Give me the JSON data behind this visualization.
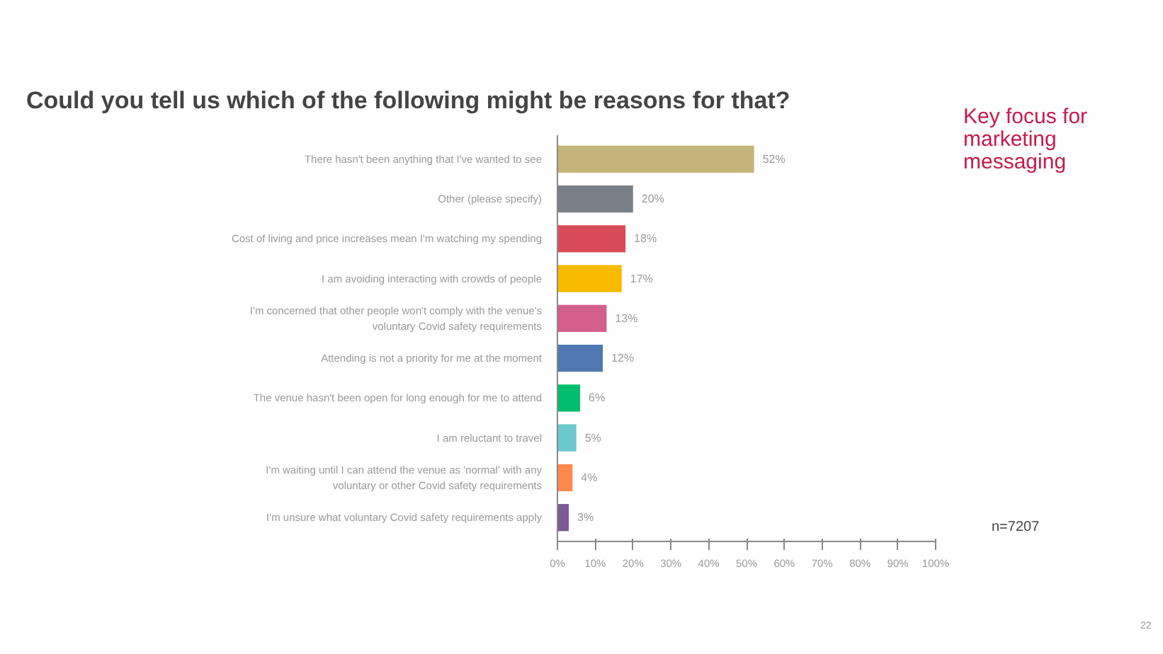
{
  "chart_data": {
    "type": "bar",
    "orientation": "horizontal",
    "title": "Could you tell us which of the following might be reasons for that?",
    "categories": [
      "There hasn't been anything that I've wanted to see",
      "Other (please specify)",
      "Cost of living and price increases mean I'm watching my spending",
      "I am avoiding interacting with crowds of people",
      "I'm concerned that other people won't comply with the venue's\nvoluntary Covid safety requirements",
      "Attending is not a priority for me at the moment",
      "The venue hasn't been open for long enough for me to attend",
      "I am reluctant to travel",
      "I'm waiting until I can attend the venue as 'normal' with any\nvoluntary or other Covid safety requirements",
      "I'm unsure what voluntary Covid safety requirements apply"
    ],
    "values": [
      52,
      20,
      18,
      17,
      13,
      12,
      6,
      5,
      4,
      3
    ],
    "value_labels": [
      "52%",
      "20%",
      "18%",
      "17%",
      "13%",
      "12%",
      "6%",
      "5%",
      "4%",
      "3%"
    ],
    "colors": [
      "#c5b47a",
      "#7a8088",
      "#da4b5a",
      "#f8bb00",
      "#d45e8e",
      "#4f78b2",
      "#00be6e",
      "#6cc8cc",
      "#ff8a4c",
      "#7b5a93"
    ],
    "xlim": [
      0,
      100
    ],
    "xticks": [
      {
        "value": 0,
        "label": "0%"
      },
      {
        "value": 10,
        "label": "10%"
      },
      {
        "value": 20,
        "label": "20%"
      },
      {
        "value": 30,
        "label": "30%"
      },
      {
        "value": 40,
        "label": "40%"
      },
      {
        "value": 50,
        "label": "50%"
      },
      {
        "value": 60,
        "label": "60%"
      },
      {
        "value": 70,
        "label": "70%"
      },
      {
        "value": 80,
        "label": "80%"
      },
      {
        "value": 90,
        "label": "90%"
      },
      {
        "value": 100,
        "label": "100%"
      }
    ],
    "annotations": [
      "Key focus for\nmarketing\nmessaging",
      "n=7207",
      "22"
    ],
    "grid": false,
    "legend": false
  }
}
